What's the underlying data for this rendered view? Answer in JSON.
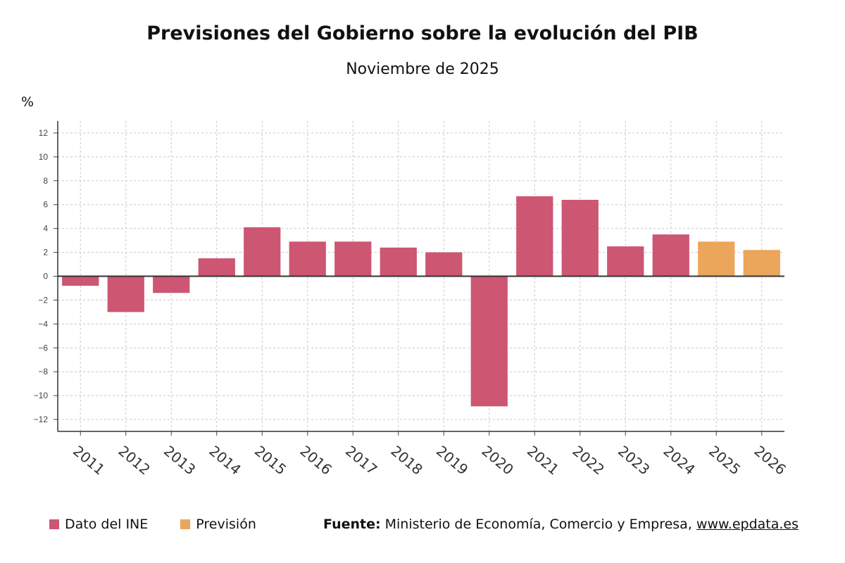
{
  "chart_data": {
    "type": "bar",
    "title": "Previsiones del Gobierno sobre la evolución del PIB",
    "subtitle": "Noviembre de 2025",
    "ylabel": "%",
    "ylim": [
      -13,
      13
    ],
    "yticks": [
      12,
      10,
      8,
      6,
      4,
      2,
      0,
      -2,
      -4,
      -6,
      -8,
      -10,
      -12
    ],
    "grid": true,
    "legend_position": "bottom-left",
    "categories": [
      "2011",
      "2012",
      "2013",
      "2014",
      "2015",
      "2016",
      "2017",
      "2018",
      "2019",
      "2020",
      "2021",
      "2022",
      "2023",
      "2024",
      "2025",
      "2026"
    ],
    "values": [
      -0.8,
      -3.0,
      -1.4,
      1.5,
      4.1,
      2.9,
      2.9,
      2.4,
      2.0,
      -10.9,
      6.7,
      6.4,
      2.5,
      3.5,
      2.9,
      2.2
    ],
    "series_of_point": [
      "ine",
      "ine",
      "ine",
      "ine",
      "ine",
      "ine",
      "ine",
      "ine",
      "ine",
      "ine",
      "ine",
      "ine",
      "ine",
      "ine",
      "prevision",
      "prevision"
    ],
    "series": [
      {
        "id": "ine",
        "name": "Dato del INE",
        "color": "#cd5673"
      },
      {
        "id": "prevision",
        "name": "Previsión",
        "color": "#eba65b"
      }
    ]
  },
  "source": {
    "label": "Fuente:",
    "text": " Ministerio de Economía, Comercio y Empresa, ",
    "link": "www.epdata.es"
  }
}
